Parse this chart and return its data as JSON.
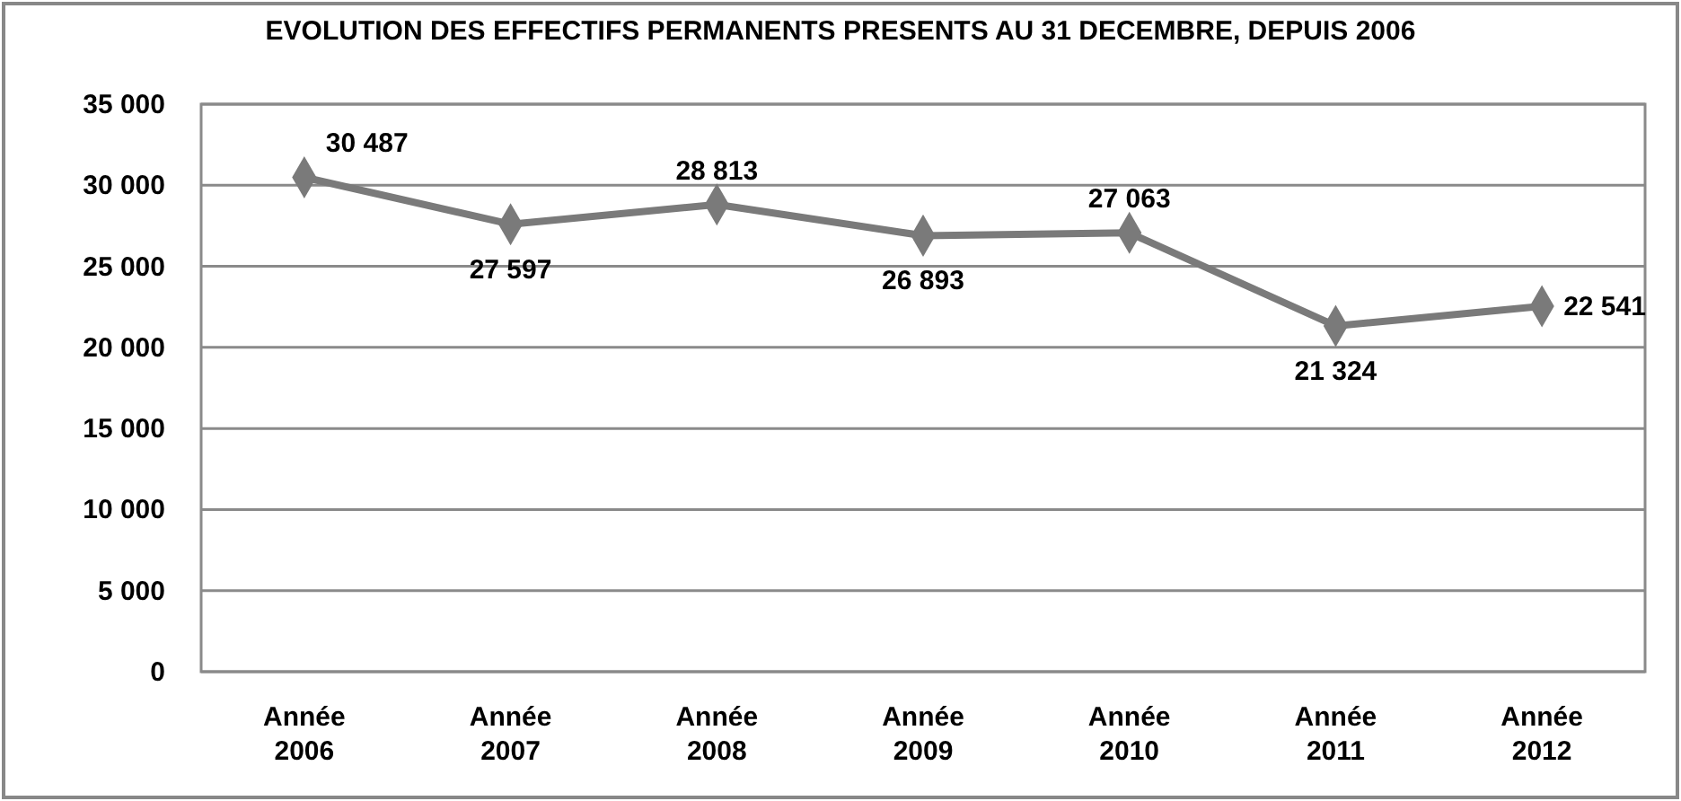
{
  "chart_data": {
    "type": "line",
    "title": "EVOLUTION DES EFFECTIFS PERMANENTS PRESENTS AU 31 DECEMBRE, DEPUIS 2006",
    "categories": [
      "Année 2006",
      "Année 2007",
      "Année 2008",
      "Année 2009",
      "Année 2010",
      "Année 2011",
      "Année 2012"
    ],
    "series": [
      {
        "color": "#7a7a7a",
        "values": [
          30487,
          27597,
          28813,
          26893,
          27063,
          21324,
          22541
        ],
        "value_labels": [
          "30 487",
          "27 597",
          "28 813",
          "26 893",
          "27 063",
          "21 324",
          "22 541"
        ]
      }
    ],
    "ylim": [
      0,
      35000
    ],
    "yticks": [
      {
        "value": 0,
        "label": "0"
      },
      {
        "value": 5000,
        "label": "5 000"
      },
      {
        "value": 10000,
        "label": "10 000"
      },
      {
        "value": 15000,
        "label": "15 000"
      },
      {
        "value": 20000,
        "label": "20 000"
      },
      {
        "value": 25000,
        "label": "25 000"
      },
      {
        "value": 30000,
        "label": "30 000"
      },
      {
        "value": 35000,
        "label": "35 000"
      }
    ],
    "grid": "y",
    "marker": "diamond",
    "line_style": "solid"
  }
}
